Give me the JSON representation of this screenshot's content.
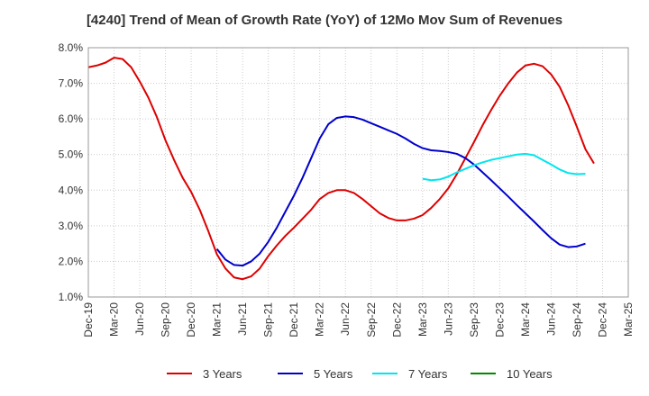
{
  "chart_data": {
    "type": "line",
    "title": "[4240]  Trend of Mean of Growth Rate (YoY) of 12Mo Mov Sum of Revenues",
    "xlabel": "",
    "ylabel": "",
    "ylim": [
      1.0,
      8.0
    ],
    "y_ticks": [
      "1.0%",
      "2.0%",
      "3.0%",
      "4.0%",
      "5.0%",
      "6.0%",
      "7.0%",
      "8.0%"
    ],
    "x_ticks": [
      "Dec-19",
      "Mar-20",
      "Jun-20",
      "Sep-20",
      "Dec-20",
      "Mar-21",
      "Jun-21",
      "Sep-21",
      "Dec-21",
      "Mar-22",
      "Jun-22",
      "Sep-22",
      "Dec-22",
      "Mar-23",
      "Jun-23",
      "Sep-23",
      "Dec-23",
      "Mar-24",
      "Jun-24",
      "Sep-24",
      "Dec-24",
      "Mar-25"
    ],
    "grid": true,
    "legend_position": "bottom",
    "series": [
      {
        "name": "3 Years",
        "color": "#dd0000",
        "start_index": 0,
        "values": [
          7.45,
          7.5,
          7.58,
          7.72,
          7.68,
          7.45,
          7.05,
          6.6,
          6.05,
          5.4,
          4.85,
          4.35,
          3.95,
          3.45,
          2.85,
          2.2,
          1.8,
          1.55,
          1.5,
          1.58,
          1.8,
          2.15,
          2.45,
          2.72,
          2.95,
          3.2,
          3.45,
          3.75,
          3.92,
          4.0,
          4.0,
          3.92,
          3.75,
          3.55,
          3.35,
          3.22,
          3.15,
          3.15,
          3.2,
          3.3,
          3.5,
          3.75,
          4.05,
          4.45,
          4.9,
          5.35,
          5.82,
          6.25,
          6.65,
          7.0,
          7.3,
          7.5,
          7.55,
          7.48,
          7.25,
          6.9,
          6.38,
          5.78,
          5.15,
          4.75
        ]
      },
      {
        "name": "5 Years",
        "color": "#0000cc",
        "start_index": 15,
        "values": [
          2.35,
          2.05,
          1.9,
          1.88,
          2.0,
          2.22,
          2.55,
          2.95,
          3.4,
          3.85,
          4.35,
          4.9,
          5.45,
          5.85,
          6.03,
          6.07,
          6.05,
          5.98,
          5.88,
          5.78,
          5.68,
          5.58,
          5.45,
          5.3,
          5.18,
          5.12,
          5.1,
          5.07,
          5.02,
          4.9,
          4.72,
          4.5,
          4.28,
          4.05,
          3.82,
          3.58,
          3.35,
          3.12,
          2.88,
          2.65,
          2.47,
          2.4,
          2.42,
          2.5
        ]
      },
      {
        "name": "7 Years",
        "color": "#00e5ee",
        "start_index": 39,
        "values": [
          4.32,
          4.28,
          4.3,
          4.38,
          4.5,
          4.6,
          4.7,
          4.78,
          4.85,
          4.9,
          4.95,
          5.0,
          5.02,
          4.98,
          4.85,
          4.72,
          4.58,
          4.48,
          4.45,
          4.46
        ]
      },
      {
        "name": "10 Years",
        "color": "#008800",
        "start_index": 0,
        "values": []
      }
    ]
  }
}
